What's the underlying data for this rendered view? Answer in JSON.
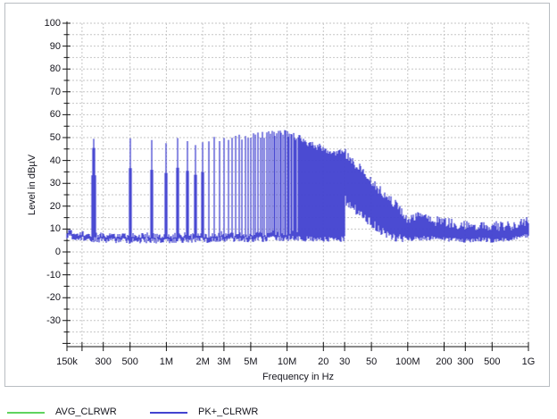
{
  "window": {
    "background": "#ffffff",
    "frame_border_color": "#b9bdc2"
  },
  "colors": {
    "trace_pk_blue": "#4343d0",
    "trace_avg_green": "#5fd35f",
    "grid_gray": "#c6c6c6",
    "axis_black": "#141414",
    "label_color": "#14141c"
  },
  "chart_data": {
    "type": "line",
    "title": "",
    "xlabel": "Frequency in Hz",
    "ylabel": "Level in dBµV",
    "xscale": "log",
    "xlim_hz": [
      150000,
      1000000000
    ],
    "ylim_db": [
      -40,
      100
    ],
    "grid": "light-gray dashed; horizontal every 5 dB; vertical at 1-2-3-5 log frequencies",
    "legend_position": "bottom-left",
    "y_tick_labels": [
      100,
      90,
      80,
      70,
      60,
      50,
      40,
      30,
      20,
      10,
      0,
      -10,
      -20,
      -30
    ],
    "y_minor_step_db": 5,
    "x_ticks": [
      {
        "label": "150k",
        "mhz": 0.15
      },
      {
        "label": "",
        "mhz": 0.2
      },
      {
        "label": "300",
        "mhz": 0.3
      },
      {
        "label": "500",
        "mhz": 0.5
      },
      {
        "label": "1M",
        "mhz": 1
      },
      {
        "label": "2M",
        "mhz": 2
      },
      {
        "label": "3M",
        "mhz": 3
      },
      {
        "label": "5M",
        "mhz": 5
      },
      {
        "label": "10M",
        "mhz": 10
      },
      {
        "label": "20",
        "mhz": 20
      },
      {
        "label": "30",
        "mhz": 30
      },
      {
        "label": "50",
        "mhz": 50
      },
      {
        "label": "100M",
        "mhz": 100
      },
      {
        "label": "200",
        "mhz": 200
      },
      {
        "label": "300",
        "mhz": 300
      },
      {
        "label": "500",
        "mhz": 500
      },
      {
        "label": "1G",
        "mhz": 1000
      }
    ],
    "series": [
      {
        "name": "AVG_CLRWR",
        "color": "#5fd35f",
        "visible_in_plot": false
      },
      {
        "name": "PK+_CLRWR",
        "color": "#4343d0",
        "visible_in_plot": true,
        "model": {
          "noise_amplitude_db": 1.3,
          "noise_floor_db": [
            [
              0.15,
              8
            ],
            [
              0.17,
              7.4
            ],
            [
              0.2,
              6.8
            ],
            [
              0.24,
              6.4
            ],
            [
              0.28,
              6.2
            ],
            [
              0.35,
              6
            ],
            [
              0.5,
              5.8
            ],
            [
              0.8,
              5.8
            ],
            [
              1.5,
              6
            ],
            [
              3,
              6.3
            ],
            [
              6,
              6.5
            ],
            [
              12,
              6.8
            ],
            [
              20,
              6.6
            ],
            [
              30,
              6.5
            ]
          ],
          "harmonic_comb": {
            "fundamental_mhz": 0.25,
            "max_mhz": 30,
            "peak_envelope_db": [
              [
                0.25,
                50
              ],
              [
                0.5,
                51
              ],
              [
                0.75,
                48
              ],
              [
                1,
                48.5
              ],
              [
                1.25,
                49
              ],
              [
                1.5,
                50
              ],
              [
                1.75,
                48
              ],
              [
                2,
                49
              ],
              [
                2.5,
                49.5
              ],
              [
                3,
                50
              ],
              [
                4,
                50.5
              ],
              [
                5,
                51
              ],
              [
                6,
                51
              ],
              [
                7,
                51.5
              ],
              [
                8,
                52
              ],
              [
                9,
                51.5
              ],
              [
                10,
                52
              ],
              [
                12,
                50
              ],
              [
                14,
                48.5
              ],
              [
                16,
                47
              ],
              [
                18,
                46
              ],
              [
                20,
                45
              ],
              [
                22,
                44
              ],
              [
                25,
                43.5
              ],
              [
                28,
                43.5
              ],
              [
                30,
                43
              ]
            ]
          },
          "broadband_hump": {
            "range_mhz": [
              30,
              95
            ],
            "top_db": [
              [
                30,
                43.5
              ],
              [
                33,
                41
              ],
              [
                36,
                39
              ],
              [
                40,
                36.5
              ],
              [
                44,
                34
              ],
              [
                48,
                32
              ],
              [
                52,
                30
              ],
              [
                56,
                28
              ],
              [
                60,
                26.5
              ],
              [
                65,
                25
              ],
              [
                70,
                23.5
              ],
              [
                75,
                22
              ],
              [
                80,
                20.5
              ],
              [
                85,
                19
              ],
              [
                90,
                17.5
              ],
              [
                95,
                16
              ]
            ],
            "bottom_db": [
              [
                30,
                23
              ],
              [
                34,
                20
              ],
              [
                38,
                18
              ],
              [
                42,
                16
              ],
              [
                46,
                14
              ],
              [
                50,
                12.5
              ],
              [
                55,
                11
              ],
              [
                60,
                9.5
              ],
              [
                65,
                8.5
              ],
              [
                70,
                7.5
              ],
              [
                75,
                7
              ],
              [
                80,
                6.5
              ],
              [
                85,
                6
              ],
              [
                95,
                5.5
              ]
            ]
          },
          "tail_band": {
            "range_mhz": [
              95,
              1000
            ],
            "top_db": [
              [
                95,
                16
              ],
              [
                100,
                14.5
              ],
              [
                110,
                14
              ],
              [
                120,
                15.5
              ],
              [
                130,
                16
              ],
              [
                140,
                15
              ],
              [
                150,
                14.5
              ],
              [
                170,
                13.5
              ],
              [
                200,
                13
              ],
              [
                250,
                12
              ],
              [
                300,
                12
              ],
              [
                350,
                11.5
              ],
              [
                400,
                12
              ],
              [
                500,
                11.5
              ],
              [
                600,
                11
              ],
              [
                700,
                11.5
              ],
              [
                800,
                12
              ],
              [
                900,
                12.5
              ],
              [
                1000,
                13.5
              ]
            ],
            "bottom_db": [
              [
                95,
                5.5
              ],
              [
                100,
                5.5
              ],
              [
                120,
                6
              ],
              [
                150,
                6
              ],
              [
                200,
                5.5
              ],
              [
                300,
                5
              ],
              [
                400,
                5.5
              ],
              [
                500,
                5
              ],
              [
                700,
                5.5
              ],
              [
                1000,
                7
              ]
            ]
          }
        }
      }
    ]
  },
  "legend": {
    "entries": [
      {
        "name": "AVG_CLRWR",
        "color": "#5fd35f"
      },
      {
        "name": "PK+_CLRWR",
        "color": "#4343d0"
      }
    ]
  }
}
